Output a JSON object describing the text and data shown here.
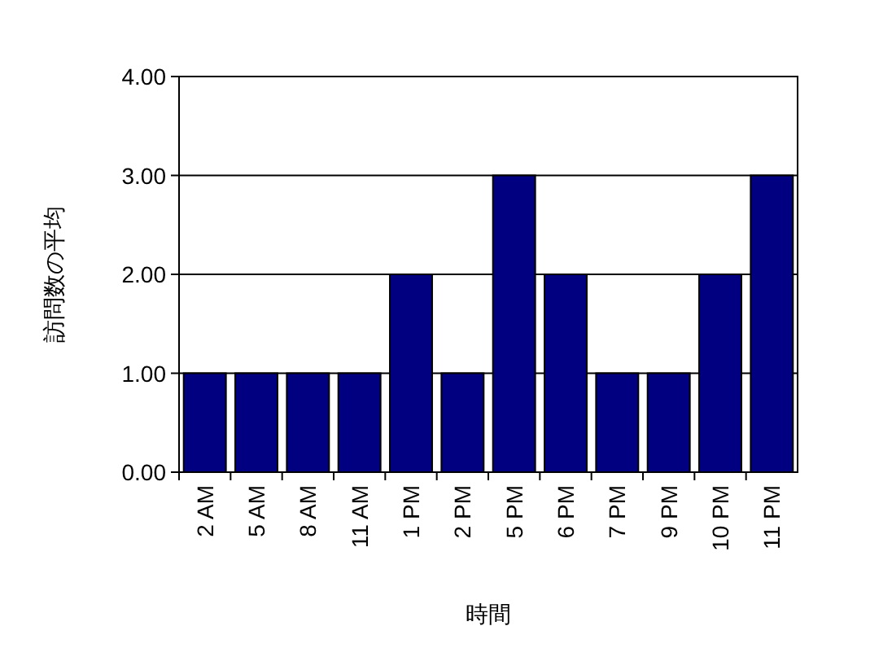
{
  "chart_data": {
    "type": "bar",
    "xlabel": "時間",
    "ylabel": "訪問数の平均",
    "categories": [
      "2 AM",
      "5 AM",
      "8 AM",
      "11 AM",
      "1 PM",
      "2 PM",
      "5 PM",
      "6 PM",
      "7 PM",
      "9 PM",
      "10 PM",
      "11 PM"
    ],
    "values": [
      1,
      1,
      1,
      1,
      2,
      1,
      3,
      2,
      1,
      1,
      2,
      3
    ],
    "color": "#000080",
    "ylim": [
      0,
      4
    ],
    "yticks": [
      {
        "value": 0,
        "label": "0.00"
      },
      {
        "value": 1,
        "label": "1.00"
      },
      {
        "value": 2,
        "label": "2.00"
      },
      {
        "value": 3,
        "label": "3.00"
      },
      {
        "value": 4,
        "label": "4.00"
      }
    ],
    "grid": "y"
  }
}
